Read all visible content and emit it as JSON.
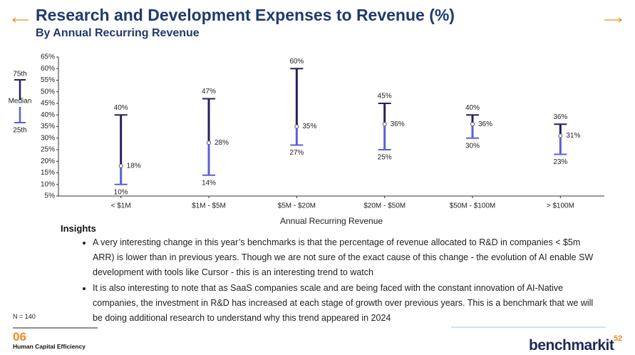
{
  "header": {
    "title": "Research and Development Expenses to Revenue (%)",
    "subtitle": "By Annual Recurring Revenue"
  },
  "chart_data": {
    "type": "range",
    "x_label": "Annual Recurring Revenue",
    "categories": [
      "< $1M",
      "$1M - $5M",
      "$5M - $20M",
      "$20M - $50M",
      "$50M - $100M",
      "> $100M"
    ],
    "series": [
      {
        "name": "75th",
        "color": "#24215c",
        "values": [
          40,
          47,
          60,
          45,
          40,
          36
        ],
        "value_labels": [
          "40%",
          "47%",
          "60%",
          "45%",
          "40%",
          "36%"
        ]
      },
      {
        "name": "Median",
        "color": "#24215c",
        "values": [
          18,
          28,
          35,
          36,
          36,
          31
        ],
        "value_labels": [
          "18%",
          "28%",
          "35%",
          "36%",
          "36%",
          "31%"
        ]
      },
      {
        "name": "25th",
        "color": "#5a60d8",
        "values": [
          10,
          14,
          27,
          25,
          30,
          23
        ],
        "value_labels": [
          "10%",
          "14%",
          "27%",
          "25%",
          "30%",
          "23%"
        ]
      }
    ],
    "ylim": [
      5,
      65
    ],
    "yticks": [
      {
        "value": 5,
        "label": "5%"
      },
      {
        "value": 10,
        "label": "10%"
      },
      {
        "value": 15,
        "label": "15%"
      },
      {
        "value": 20,
        "label": "20%"
      },
      {
        "value": 25,
        "label": "25%"
      },
      {
        "value": 30,
        "label": "30%"
      },
      {
        "value": 35,
        "label": "35%"
      },
      {
        "value": 40,
        "label": "40%"
      },
      {
        "value": 45,
        "label": "45%"
      },
      {
        "value": 50,
        "label": "50%"
      },
      {
        "value": 55,
        "label": "55%"
      },
      {
        "value": 60,
        "label": "60%"
      },
      {
        "value": 65,
        "label": "65%"
      }
    ],
    "grid": false
  },
  "insights": {
    "title": "Insights",
    "bullets": [
      "A very interesting change in this year’s benchmarks is that the percentage of revenue allocated to R&D in companies < $5m ARR) is lower than in previous years.  Though we are not sure of the exact cause of this change - the evolution of AI enable SW development with tools like Cursor - this is an interesting trend to watch",
      "It is also interesting to note that as SaaS companies scale and are being faced with the constant innovation of AI-Native companies, the investment in R&D has increased at each stage of growth over previous years.  This is a benchmark that we will be doing additional research to understand why this trend appeared in 2024"
    ]
  },
  "footer": {
    "note": "N = 140",
    "section_number": "06",
    "section_name": "Human Capital Efficiency",
    "brand": "benchmarkit",
    "page": "52"
  }
}
